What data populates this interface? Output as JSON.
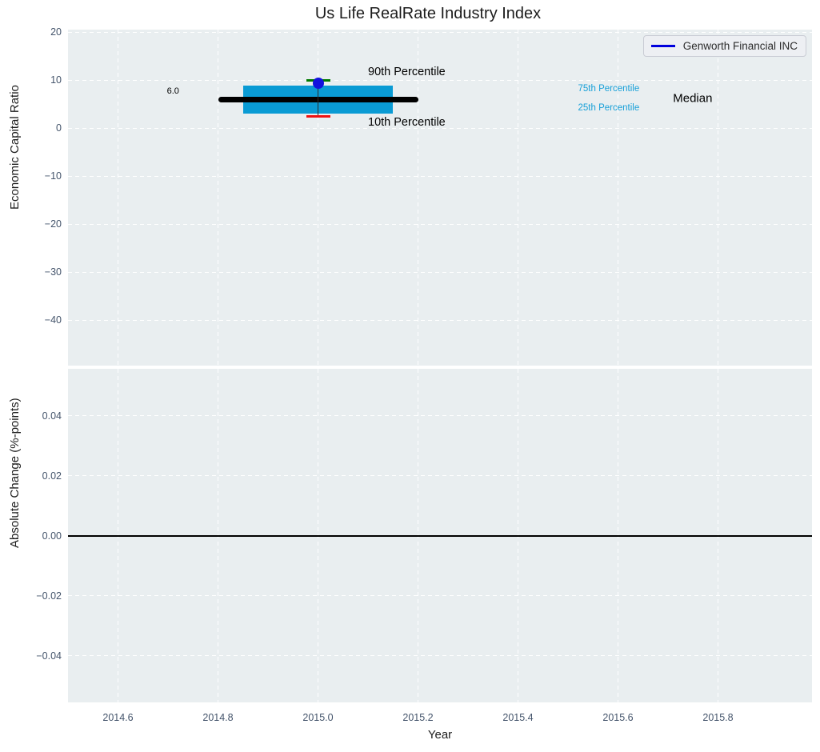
{
  "colors": {
    "plot_background": "#e9eef0",
    "gridline": "#ffffff",
    "tick_label": "#44546b",
    "box_fill": "#0a9bd4",
    "percentile_90_cap": "#007a00",
    "percentile_10_cap": "#ee1111",
    "company_point": "#1212dd",
    "median_line": "#000000",
    "legend_line": "#0000dd",
    "cyan_label": "#18a0d8",
    "black_label": "#000000"
  },
  "chart_data": [
    {
      "type": "box",
      "subplot": "top",
      "title": "Us Life RealRate Industry Index",
      "ylabel": "Economic Capital Ratio",
      "grid": true,
      "xlim": [
        2014.5,
        2015.988
      ],
      "ylim": [
        -49.5,
        20.5
      ],
      "yticks": [
        20,
        10,
        0,
        -10,
        -20,
        -30,
        -40
      ],
      "ytick_labels": [
        "20",
        "10",
        "0",
        "−10",
        "−20",
        "−30",
        "−40"
      ],
      "xticks": [
        2014.6,
        2014.8,
        2015.0,
        2015.2,
        2015.4,
        2015.6,
        2015.8
      ],
      "box": {
        "x": 2015.0,
        "box_left": 2014.85,
        "box_right": 2015.15,
        "median": 6.0,
        "median_line_left": 2014.8,
        "median_line_right": 2015.2,
        "q1": 3.0,
        "q3": 8.8,
        "p10": 2.5,
        "p90": 10.0,
        "company_point": {
          "name": "Genworth Financial INC",
          "x": 2015.0,
          "y": 9.4
        }
      },
      "legend": {
        "position": "upper right",
        "entries": [
          {
            "label": "Genworth Financial INC",
            "color": "#0000dd"
          }
        ]
      },
      "annotations": [
        {
          "id": "median-value-label",
          "text": "6.0",
          "x": 2014.71,
          "y": 7.6,
          "size": 11,
          "color": "#000000",
          "align": "center"
        },
        {
          "id": "annotation-90th-percentile",
          "text": "90th Percentile",
          "x": 2015.1,
          "y": 11.6,
          "size": 14.5,
          "color": "#000000",
          "align": "left"
        },
        {
          "id": "annotation-10th-percentile",
          "text": "10th Percentile",
          "x": 2015.1,
          "y": 1.2,
          "size": 14.5,
          "color": "#000000",
          "align": "left"
        },
        {
          "id": "annotation-75th-percentile",
          "text": "75th Percentile",
          "x": 2015.52,
          "y": 8.1,
          "size": 11.5,
          "color": "#18a0d8",
          "align": "left"
        },
        {
          "id": "annotation-25th-percentile",
          "text": "25th Percentile",
          "x": 2015.52,
          "y": 4.2,
          "size": 11.5,
          "color": "#18a0d8",
          "align": "left"
        },
        {
          "id": "annotation-median",
          "text": "Median",
          "x": 2015.71,
          "y": 6.1,
          "size": 15,
          "color": "#000000",
          "align": "left"
        }
      ]
    },
    {
      "type": "line",
      "subplot": "bottom",
      "ylabel": "Absolute Change (%-points)",
      "xlabel": "Year",
      "grid": true,
      "xlim": [
        2014.5,
        2015.988
      ],
      "ylim": [
        -0.0555,
        0.0557
      ],
      "yticks": [
        0.04,
        0.02,
        0.0,
        -0.02,
        -0.04
      ],
      "ytick_labels": [
        "0.04",
        "0.02",
        "0.00",
        "−0.02",
        "−0.04"
      ],
      "xticks": [
        2014.6,
        2014.8,
        2015.0,
        2015.2,
        2015.4,
        2015.6,
        2015.8
      ],
      "xtick_labels": [
        "2014.6",
        "2014.8",
        "2015.0",
        "2015.2",
        "2015.4",
        "2015.6",
        "2015.8"
      ],
      "series": [
        {
          "name": "zero-line",
          "type": "hline",
          "y": 0.0,
          "color": "#000000"
        }
      ]
    }
  ]
}
